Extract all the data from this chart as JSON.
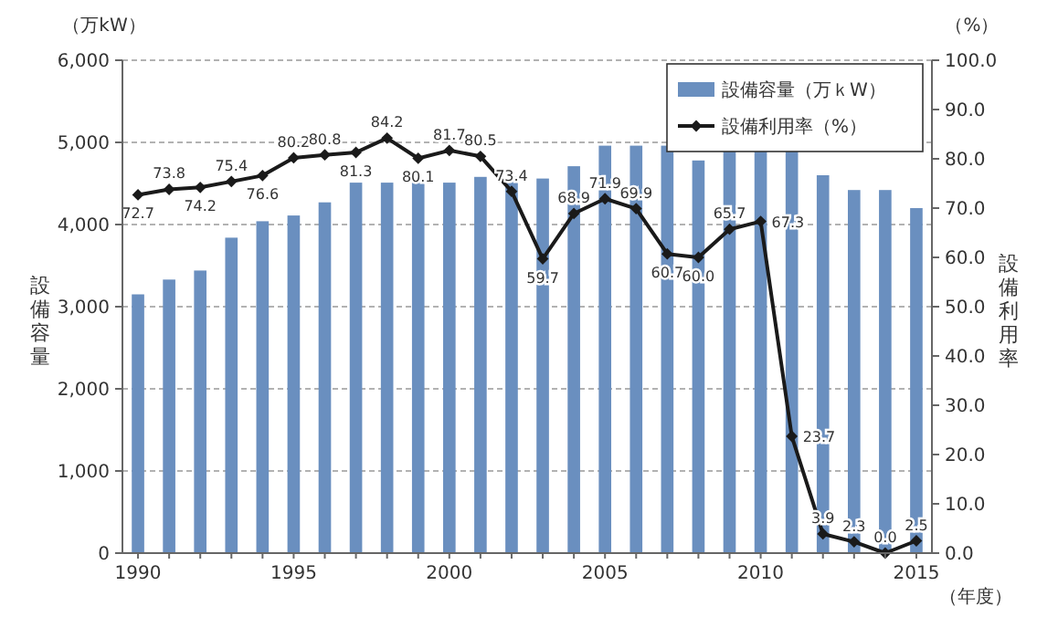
{
  "chart_data": {
    "type": "bar",
    "categories": [
      "1990",
      null,
      null,
      null,
      null,
      "1995",
      null,
      null,
      null,
      null,
      "2000",
      null,
      null,
      null,
      null,
      "2005",
      null,
      null,
      null,
      null,
      "2010",
      null,
      null,
      null,
      null,
      "2015"
    ],
    "series": [
      {
        "name": "設備容量（万ｋW）",
        "color": "#6a8fbf",
        "values": [
          3150,
          3330,
          3440,
          3840,
          4040,
          4110,
          4270,
          4510,
          4510,
          4510,
          4510,
          4580,
          4580,
          4560,
          4710,
          4960,
          4960,
          4960,
          4780,
          4890,
          4890,
          4890,
          4600,
          4420,
          4420,
          4200
        ]
      },
      {
        "name": "設備利用率（%）",
        "type": "line",
        "axis": "y2",
        "color": "#1a1a1a",
        "marker": "diamond",
        "values": [
          72.7,
          73.8,
          74.2,
          75.4,
          76.6,
          80.2,
          80.8,
          81.3,
          84.2,
          80.1,
          81.7,
          80.5,
          73.4,
          59.7,
          68.9,
          71.9,
          69.9,
          60.7,
          60.0,
          65.7,
          67.3,
          23.7,
          3.9,
          2.3,
          0.0,
          2.5
        ],
        "value_labels": [
          "72.7",
          "73.8",
          "74.2",
          "75.4",
          "76.6",
          "80.2",
          "80.8",
          "81.3",
          "84.2",
          "80.1",
          "81.7",
          "80.5",
          "73.4",
          "59.7",
          "68.9",
          "71.9",
          "69.9",
          "60.7",
          "60.0",
          "65.7",
          "67.3",
          "23.7",
          "3.9",
          "2.3",
          "0.0",
          "2.5"
        ]
      }
    ],
    "ylim": [
      0,
      6000
    ],
    "yticks": [
      {
        "value": 0,
        "label": "0"
      },
      {
        "value": 1000,
        "label": "1,000"
      },
      {
        "value": 2000,
        "label": "2,000"
      },
      {
        "value": 3000,
        "label": "3,000"
      },
      {
        "value": 4000,
        "label": "4,000"
      },
      {
        "value": 5000,
        "label": "5,000"
      },
      {
        "value": 6000,
        "label": "6,000"
      }
    ],
    "y2lim": [
      0,
      100
    ],
    "y2ticks": [
      {
        "value": 0,
        "label": "0.0"
      },
      {
        "value": 10,
        "label": "10.0"
      },
      {
        "value": 20,
        "label": "20.0"
      },
      {
        "value": 30,
        "label": "30.0"
      },
      {
        "value": 40,
        "label": "40.0"
      },
      {
        "value": 50,
        "label": "50.0"
      },
      {
        "value": 60,
        "label": "60.0"
      },
      {
        "value": 70,
        "label": "70.0"
      },
      {
        "value": 80,
        "label": "80.0"
      },
      {
        "value": 90,
        "label": "90.0"
      },
      {
        "value": 100,
        "label": "100.0"
      }
    ],
    "ylabel": "設備容量",
    "y2label": "設備利用率",
    "xlabel": "（年度）",
    "annotations": [
      "（万kW）",
      "（%）"
    ],
    "grid": "y",
    "legend": "top right"
  }
}
